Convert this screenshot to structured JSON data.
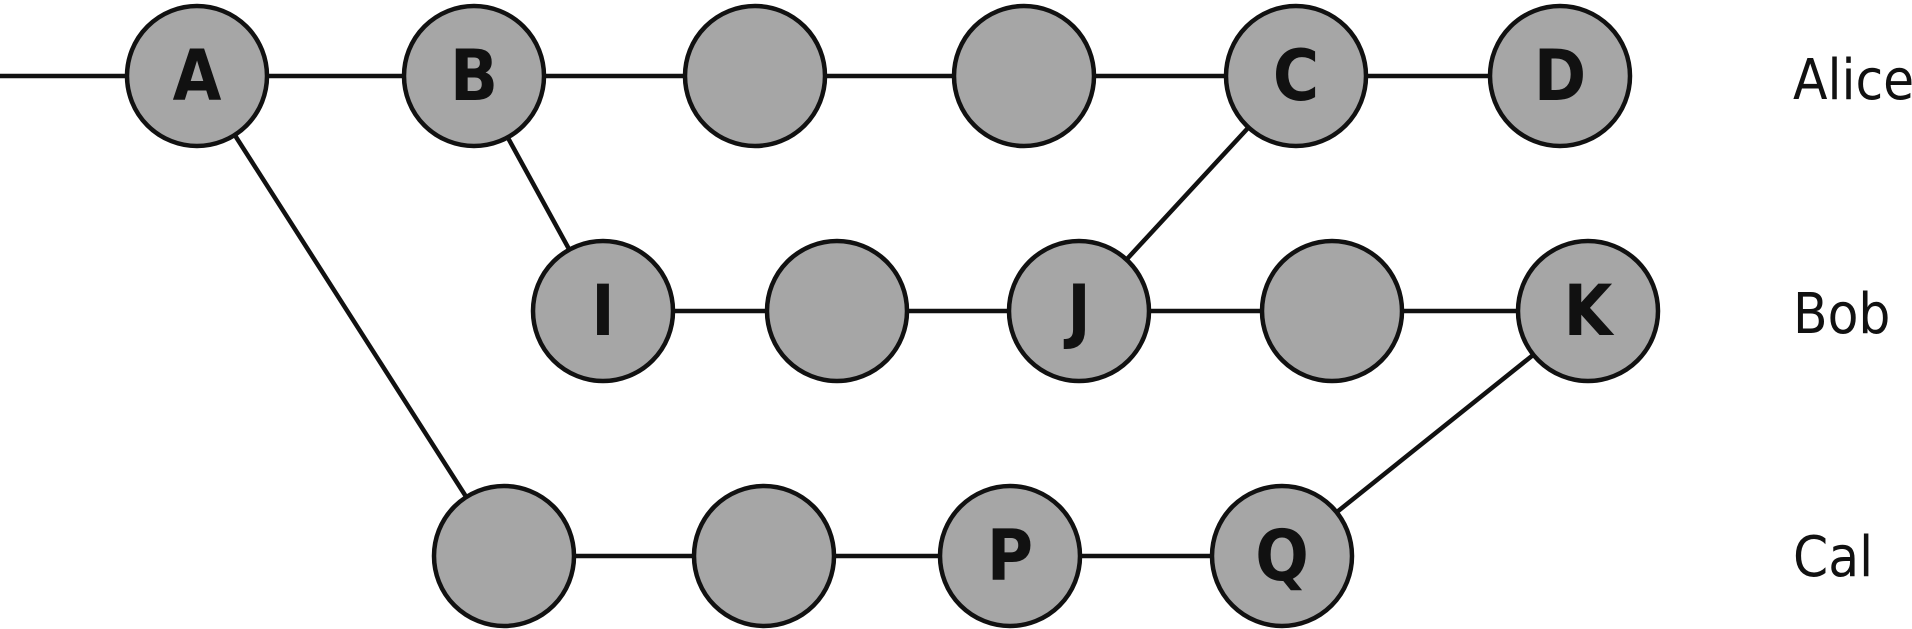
{
  "colors": {
    "node_fill": "#a6a6a6",
    "stroke": "#111111",
    "background": "#ffffff"
  },
  "branches": [
    {
      "id": "alice",
      "label": "Alice"
    },
    {
      "id": "bob",
      "label": "Bob"
    },
    {
      "id": "cal",
      "label": "Cal"
    }
  ],
  "nodes": [
    {
      "id": "A",
      "label": "A",
      "branch": "alice"
    },
    {
      "id": "B",
      "label": "B",
      "branch": "alice"
    },
    {
      "id": "a3",
      "label": "",
      "branch": "alice"
    },
    {
      "id": "a4",
      "label": "",
      "branch": "alice"
    },
    {
      "id": "C",
      "label": "C",
      "branch": "alice"
    },
    {
      "id": "D",
      "label": "D",
      "branch": "alice"
    },
    {
      "id": "I",
      "label": "I",
      "branch": "bob"
    },
    {
      "id": "b2",
      "label": "",
      "branch": "bob"
    },
    {
      "id": "J",
      "label": "J",
      "branch": "bob"
    },
    {
      "id": "b4",
      "label": "",
      "branch": "bob"
    },
    {
      "id": "K",
      "label": "K",
      "branch": "bob"
    },
    {
      "id": "c1",
      "label": "",
      "branch": "cal"
    },
    {
      "id": "c2",
      "label": "",
      "branch": "cal"
    },
    {
      "id": "P",
      "label": "P",
      "branch": "cal"
    },
    {
      "id": "Q",
      "label": "Q",
      "branch": "cal"
    }
  ],
  "edges": [
    [
      "start",
      "A"
    ],
    [
      "A",
      "B"
    ],
    [
      "B",
      "a3"
    ],
    [
      "a3",
      "a4"
    ],
    [
      "a4",
      "C"
    ],
    [
      "C",
      "D"
    ],
    [
      "B",
      "I"
    ],
    [
      "I",
      "b2"
    ],
    [
      "b2",
      "J"
    ],
    [
      "J",
      "b4"
    ],
    [
      "b4",
      "K"
    ],
    [
      "J",
      "C"
    ],
    [
      "A",
      "c1"
    ],
    [
      "c1",
      "c2"
    ],
    [
      "c2",
      "P"
    ],
    [
      "P",
      "Q"
    ],
    [
      "Q",
      "K"
    ]
  ]
}
